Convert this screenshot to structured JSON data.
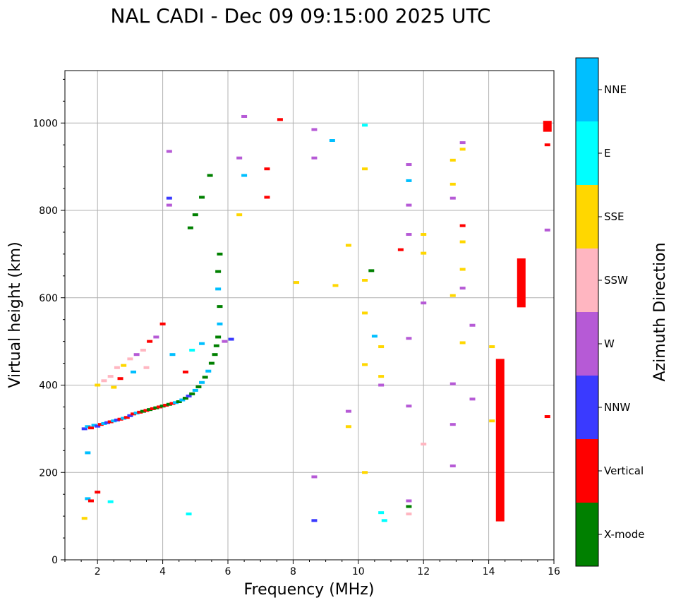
{
  "chart_data": {
    "type": "scatter",
    "title": "NAL CADI - Dec 09 09:15:00 2025 UTC",
    "xlabel": "Frequency (MHz)",
    "ylabel": "Virtual height (km)",
    "xlim": [
      1,
      16
    ],
    "ylim": [
      0,
      1120
    ],
    "xticks": [
      2,
      4,
      6,
      8,
      10,
      12,
      14,
      16
    ],
    "yticks": [
      0,
      200,
      400,
      600,
      800,
      1000
    ],
    "grid": true,
    "colorbar": {
      "title": "Azimuth Direction",
      "categories": [
        {
          "name": "X-mode",
          "color": "#008000"
        },
        {
          "name": "Vertical",
          "color": "#ff0000"
        },
        {
          "name": "NNW",
          "color": "#3a3aff"
        },
        {
          "name": "W",
          "color": "#b65ad6"
        },
        {
          "name": "SSW",
          "color": "#ffb6c1"
        },
        {
          "name": "SSE",
          "color": "#ffd700"
        },
        {
          "name": "E",
          "color": "#00ffff"
        },
        {
          "name": "NNE",
          "color": "#00bfff"
        }
      ]
    },
    "points": [
      {
        "f": 1.6,
        "h": 300,
        "c": "NNW"
      },
      {
        "f": 1.7,
        "h": 305,
        "c": "NNE"
      },
      {
        "f": 1.8,
        "h": 302,
        "c": "Vertical"
      },
      {
        "f": 1.9,
        "h": 308,
        "c": "NNE"
      },
      {
        "f": 2.0,
        "h": 306,
        "c": "NNW"
      },
      {
        "f": 2.1,
        "h": 310,
        "c": "Vertical"
      },
      {
        "f": 2.2,
        "h": 312,
        "c": "NNE"
      },
      {
        "f": 2.3,
        "h": 314,
        "c": "NNW"
      },
      {
        "f": 2.4,
        "h": 316,
        "c": "Vertical"
      },
      {
        "f": 2.5,
        "h": 318,
        "c": "NNE"
      },
      {
        "f": 2.6,
        "h": 320,
        "c": "NNW"
      },
      {
        "f": 2.7,
        "h": 322,
        "c": "Vertical"
      },
      {
        "f": 2.8,
        "h": 324,
        "c": "NNE"
      },
      {
        "f": 2.9,
        "h": 326,
        "c": "Vertical"
      },
      {
        "f": 3.0,
        "h": 330,
        "c": "NNW"
      },
      {
        "f": 3.1,
        "h": 334,
        "c": "Vertical"
      },
      {
        "f": 3.2,
        "h": 336,
        "c": "NNE"
      },
      {
        "f": 3.3,
        "h": 338,
        "c": "Vertical"
      },
      {
        "f": 3.4,
        "h": 340,
        "c": "X-mode"
      },
      {
        "f": 3.5,
        "h": 342,
        "c": "Vertical"
      },
      {
        "f": 3.6,
        "h": 344,
        "c": "X-mode"
      },
      {
        "f": 3.7,
        "h": 346,
        "c": "Vertical"
      },
      {
        "f": 3.8,
        "h": 348,
        "c": "X-mode"
      },
      {
        "f": 3.9,
        "h": 350,
        "c": "Vertical"
      },
      {
        "f": 4.0,
        "h": 352,
        "c": "X-mode"
      },
      {
        "f": 4.1,
        "h": 354,
        "c": "Vertical"
      },
      {
        "f": 4.2,
        "h": 356,
        "c": "X-mode"
      },
      {
        "f": 4.3,
        "h": 358,
        "c": "Vertical"
      },
      {
        "f": 4.4,
        "h": 360,
        "c": "NNE"
      },
      {
        "f": 4.5,
        "h": 362,
        "c": "X-mode"
      },
      {
        "f": 4.6,
        "h": 366,
        "c": "NNE"
      },
      {
        "f": 4.7,
        "h": 370,
        "c": "X-mode"
      },
      {
        "f": 4.8,
        "h": 375,
        "c": "NNW"
      },
      {
        "f": 4.9,
        "h": 380,
        "c": "X-mode"
      },
      {
        "f": 5.0,
        "h": 388,
        "c": "NNE"
      },
      {
        "f": 5.1,
        "h": 396,
        "c": "X-mode"
      },
      {
        "f": 5.2,
        "h": 406,
        "c": "NNE"
      },
      {
        "f": 5.3,
        "h": 418,
        "c": "X-mode"
      },
      {
        "f": 5.4,
        "h": 432,
        "c": "NNE"
      },
      {
        "f": 5.5,
        "h": 450,
        "c": "X-mode"
      },
      {
        "f": 5.6,
        "h": 470,
        "c": "X-mode"
      },
      {
        "f": 5.65,
        "h": 490,
        "c": "X-mode"
      },
      {
        "f": 5.7,
        "h": 510,
        "c": "X-mode"
      },
      {
        "f": 5.75,
        "h": 540,
        "c": "NNE"
      },
      {
        "f": 5.75,
        "h": 580,
        "c": "X-mode"
      },
      {
        "f": 5.7,
        "h": 620,
        "c": "NNE"
      },
      {
        "f": 5.7,
        "h": 660,
        "c": "X-mode"
      },
      {
        "f": 5.75,
        "h": 700,
        "c": "X-mode"
      },
      {
        "f": 2.0,
        "h": 400,
        "c": "SSE"
      },
      {
        "f": 2.2,
        "h": 410,
        "c": "SSW"
      },
      {
        "f": 2.4,
        "h": 420,
        "c": "SSW"
      },
      {
        "f": 2.6,
        "h": 440,
        "c": "SSW"
      },
      {
        "f": 2.8,
        "h": 445,
        "c": "SSE"
      },
      {
        "f": 3.0,
        "h": 460,
        "c": "SSW"
      },
      {
        "f": 3.2,
        "h": 470,
        "c": "W"
      },
      {
        "f": 3.4,
        "h": 480,
        "c": "SSW"
      },
      {
        "f": 3.6,
        "h": 500,
        "c": "Vertical"
      },
      {
        "f": 3.8,
        "h": 510,
        "c": "W"
      },
      {
        "f": 4.0,
        "h": 540,
        "c": "Vertical"
      },
      {
        "f": 2.5,
        "h": 395,
        "c": "SSE"
      },
      {
        "f": 2.7,
        "h": 415,
        "c": "Vertical"
      },
      {
        "f": 3.1,
        "h": 430,
        "c": "NNE"
      },
      {
        "f": 3.5,
        "h": 440,
        "c": "SSW"
      },
      {
        "f": 4.3,
        "h": 470,
        "c": "NNE"
      },
      {
        "f": 4.7,
        "h": 430,
        "c": "Vertical"
      },
      {
        "f": 4.9,
        "h": 480,
        "c": "E"
      },
      {
        "f": 5.2,
        "h": 495,
        "c": "NNE"
      },
      {
        "f": 5.9,
        "h": 500,
        "c": "W"
      },
      {
        "f": 6.1,
        "h": 505,
        "c": "NNW"
      },
      {
        "f": 1.7,
        "h": 140,
        "c": "NNE"
      },
      {
        "f": 1.8,
        "h": 135,
        "c": "Vertical"
      },
      {
        "f": 2.0,
        "h": 155,
        "c": "Vertical"
      },
      {
        "f": 2.4,
        "h": 133,
        "c": "E"
      },
      {
        "f": 1.6,
        "h": 95,
        "c": "SSE"
      },
      {
        "f": 1.7,
        "h": 245,
        "c": "NNE"
      },
      {
        "f": 4.8,
        "h": 105,
        "c": "E"
      },
      {
        "f": 4.2,
        "h": 935,
        "c": "W"
      },
      {
        "f": 4.2,
        "h": 828,
        "c": "NNW"
      },
      {
        "f": 4.2,
        "h": 812,
        "c": "W"
      },
      {
        "f": 4.85,
        "h": 760,
        "c": "X-mode"
      },
      {
        "f": 5.0,
        "h": 790,
        "c": "X-mode"
      },
      {
        "f": 5.2,
        "h": 830,
        "c": "X-mode"
      },
      {
        "f": 5.45,
        "h": 880,
        "c": "X-mode"
      },
      {
        "f": 6.35,
        "h": 920,
        "c": "W"
      },
      {
        "f": 6.35,
        "h": 790,
        "c": "SSE"
      },
      {
        "f": 6.5,
        "h": 880,
        "c": "NNE"
      },
      {
        "f": 6.5,
        "h": 1015,
        "c": "W"
      },
      {
        "f": 7.2,
        "h": 895,
        "c": "Vertical"
      },
      {
        "f": 7.2,
        "h": 830,
        "c": "Vertical"
      },
      {
        "f": 7.6,
        "h": 1008,
        "c": "Vertical"
      },
      {
        "f": 8.1,
        "h": 635,
        "c": "SSE"
      },
      {
        "f": 8.65,
        "h": 985,
        "c": "W"
      },
      {
        "f": 8.65,
        "h": 920,
        "c": "W"
      },
      {
        "f": 8.65,
        "h": 190,
        "c": "W"
      },
      {
        "f": 8.65,
        "h": 90,
        "c": "NNW"
      },
      {
        "f": 9.2,
        "h": 960,
        "c": "NNE"
      },
      {
        "f": 9.3,
        "h": 628,
        "c": "SSE"
      },
      {
        "f": 9.7,
        "h": 720,
        "c": "SSE"
      },
      {
        "f": 9.7,
        "h": 340,
        "c": "W"
      },
      {
        "f": 9.7,
        "h": 305,
        "c": "SSE"
      },
      {
        "f": 10.2,
        "h": 995,
        "c": "E"
      },
      {
        "f": 10.2,
        "h": 895,
        "c": "SSE"
      },
      {
        "f": 10.2,
        "h": 640,
        "c": "SSE"
      },
      {
        "f": 10.2,
        "h": 565,
        "c": "SSE"
      },
      {
        "f": 10.2,
        "h": 447,
        "c": "SSE"
      },
      {
        "f": 10.2,
        "h": 200,
        "c": "SSE"
      },
      {
        "f": 10.4,
        "h": 662,
        "c": "X-mode"
      },
      {
        "f": 10.5,
        "h": 512,
        "c": "NNE"
      },
      {
        "f": 10.7,
        "h": 488,
        "c": "SSE"
      },
      {
        "f": 10.7,
        "h": 420,
        "c": "SSE"
      },
      {
        "f": 10.7,
        "h": 400,
        "c": "W"
      },
      {
        "f": 10.7,
        "h": 108,
        "c": "E"
      },
      {
        "f": 10.8,
        "h": 90,
        "c": "E"
      },
      {
        "f": 11.3,
        "h": 710,
        "c": "Vertical"
      },
      {
        "f": 11.55,
        "h": 905,
        "c": "W"
      },
      {
        "f": 11.55,
        "h": 868,
        "c": "NNE"
      },
      {
        "f": 11.55,
        "h": 812,
        "c": "W"
      },
      {
        "f": 11.55,
        "h": 745,
        "c": "W"
      },
      {
        "f": 11.55,
        "h": 507,
        "c": "W"
      },
      {
        "f": 11.55,
        "h": 352,
        "c": "W"
      },
      {
        "f": 11.55,
        "h": 135,
        "c": "W"
      },
      {
        "f": 11.55,
        "h": 122,
        "c": "X-mode"
      },
      {
        "f": 11.55,
        "h": 105,
        "c": "SSW"
      },
      {
        "f": 12.0,
        "h": 745,
        "c": "SSE"
      },
      {
        "f": 12.0,
        "h": 702,
        "c": "SSE"
      },
      {
        "f": 12.0,
        "h": 588,
        "c": "W"
      },
      {
        "f": 12.0,
        "h": 265,
        "c": "SSW"
      },
      {
        "f": 12.9,
        "h": 915,
        "c": "SSE"
      },
      {
        "f": 12.9,
        "h": 860,
        "c": "SSE"
      },
      {
        "f": 12.9,
        "h": 828,
        "c": "W"
      },
      {
        "f": 12.9,
        "h": 605,
        "c": "SSE"
      },
      {
        "f": 12.9,
        "h": 403,
        "c": "W"
      },
      {
        "f": 12.9,
        "h": 310,
        "c": "W"
      },
      {
        "f": 12.9,
        "h": 215,
        "c": "W"
      },
      {
        "f": 13.2,
        "h": 955,
        "c": "W"
      },
      {
        "f": 13.2,
        "h": 940,
        "c": "SSE"
      },
      {
        "f": 13.2,
        "h": 765,
        "c": "Vertical"
      },
      {
        "f": 13.2,
        "h": 728,
        "c": "SSE"
      },
      {
        "f": 13.2,
        "h": 665,
        "c": "SSE"
      },
      {
        "f": 13.2,
        "h": 622,
        "c": "W"
      },
      {
        "f": 13.2,
        "h": 497,
        "c": "SSE"
      },
      {
        "f": 13.5,
        "h": 537,
        "c": "W"
      },
      {
        "f": 13.5,
        "h": 368,
        "c": "W"
      },
      {
        "f": 14.1,
        "h": 488,
        "c": "SSE"
      },
      {
        "f": 14.1,
        "h": 318,
        "c": "SSE"
      },
      {
        "f": 15.8,
        "h": 950,
        "c": "Vertical"
      },
      {
        "f": 15.8,
        "h": 755,
        "c": "W"
      },
      {
        "f": 15.8,
        "h": 328,
        "c": "Vertical"
      }
    ],
    "bars": [
      {
        "f": 14.35,
        "h0": 88,
        "h1": 460,
        "c": "Vertical"
      },
      {
        "f": 15.0,
        "h0": 578,
        "h1": 690,
        "c": "Vertical"
      },
      {
        "f": 15.8,
        "h0": 980,
        "h1": 1005,
        "c": "Vertical"
      }
    ]
  }
}
